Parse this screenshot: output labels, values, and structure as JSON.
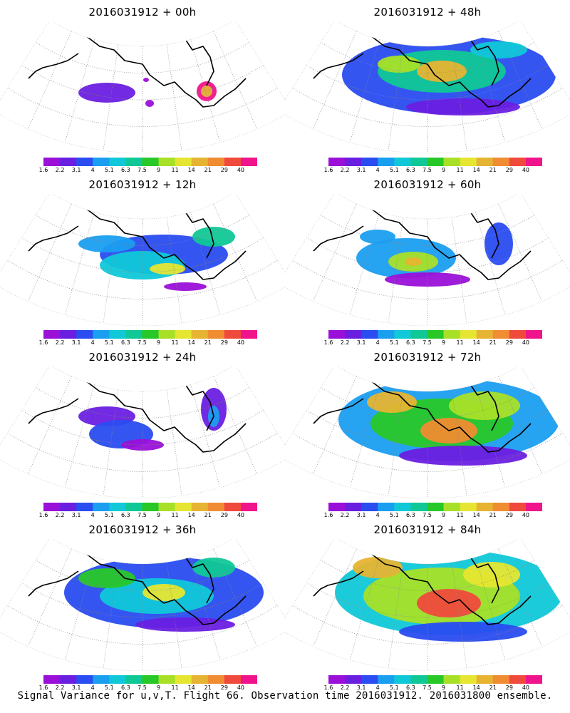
{
  "panels": [
    {
      "title": "2016031912 + 00h",
      "level": 0
    },
    {
      "title": "2016031912 + 48h",
      "level": 5
    },
    {
      "title": "2016031912 + 12h",
      "level": 1
    },
    {
      "title": "2016031912 + 60h",
      "level": 6
    },
    {
      "title": "2016031912 + 24h",
      "level": 2
    },
    {
      "title": "2016031912 + 72h",
      "level": 7
    },
    {
      "title": "2016031912 + 36h",
      "level": 3
    },
    {
      "title": "2016031912 + 84h",
      "level": 8
    }
  ],
  "colorbar": {
    "labels": [
      "1.6",
      "2.2",
      "3.1",
      "4",
      "5.1",
      "6.3",
      "7.5",
      "9",
      "11",
      "14",
      "21",
      "29",
      "40"
    ],
    "colors": [
      "#9a10d8",
      "#6a1fe0",
      "#2a4cf0",
      "#1a9ef0",
      "#10c8d8",
      "#10c896",
      "#28c828",
      "#a8e028",
      "#e6e632",
      "#e6b432",
      "#f08c32",
      "#f04a3c",
      "#f0148c"
    ]
  },
  "footer": "Signal Variance for u,v,T. Flight 66. Observation time 2016031912. 2016031800 ensemble."
}
